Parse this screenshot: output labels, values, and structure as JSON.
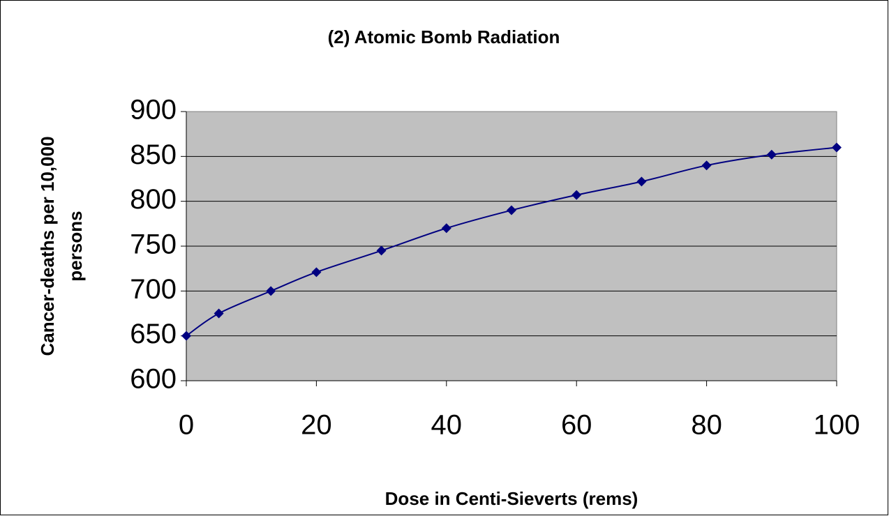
{
  "chart_data": {
    "type": "line",
    "title": "(2) Atomic Bomb Radiation",
    "xlabel": "Dose in Centi-Sieverts (rems)",
    "ylabel": [
      "Cancer-deaths per 10,000",
      "persons"
    ],
    "x": [
      0,
      5,
      13,
      20,
      30,
      40,
      50,
      60,
      70,
      80,
      90,
      100
    ],
    "series": [
      {
        "name": "Cancer-deaths",
        "color": "#000080",
        "values": [
          650,
          675,
          700,
          721,
          745,
          770,
          790,
          807,
          822,
          840,
          852,
          860
        ]
      }
    ],
    "xlim": [
      0,
      100
    ],
    "xticks": [
      0,
      20,
      40,
      60,
      80,
      100
    ],
    "ylim": [
      600,
      900
    ],
    "yticks": [
      600,
      650,
      700,
      750,
      800,
      850,
      900
    ],
    "grid": true,
    "smooth": true
  }
}
